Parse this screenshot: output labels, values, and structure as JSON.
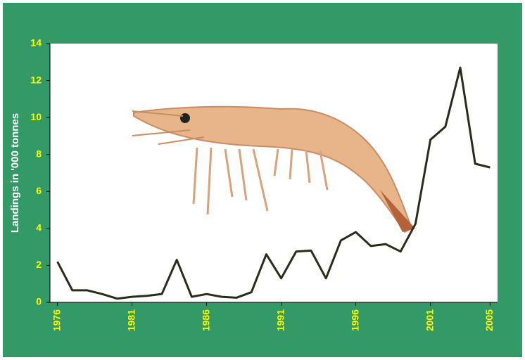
{
  "chart_data": {
    "type": "line",
    "y_label": "Landings in '000 tonnes",
    "x": [
      1976,
      1977,
      1978,
      1979,
      1980,
      1981,
      1982,
      1983,
      1984,
      1985,
      1986,
      1987,
      1988,
      1989,
      1990,
      1991,
      1992,
      1993,
      1994,
      1995,
      1996,
      1997,
      1998,
      1999,
      2000,
      2001,
      2002,
      2003,
      2004,
      2005
    ],
    "values": [
      2.2,
      0.65,
      0.65,
      0.45,
      0.2,
      0.3,
      0.35,
      0.45,
      2.3,
      0.3,
      0.45,
      0.3,
      0.25,
      0.55,
      2.6,
      1.3,
      2.75,
      2.8,
      1.3,
      3.35,
      3.8,
      3.05,
      3.15,
      2.75,
      4.25,
      8.8,
      9.5,
      12.7,
      7.5,
      7.3
    ],
    "color": "#2b2b1a",
    "xlim": [
      1975.5,
      2005.5
    ],
    "xticks": [
      1976,
      1981,
      1986,
      1991,
      1996,
      2001,
      2005
    ],
    "ylim": [
      0,
      14
    ],
    "yticks": [
      0,
      2,
      4,
      6,
      8,
      10,
      12,
      14
    ],
    "grid": false
  }
}
